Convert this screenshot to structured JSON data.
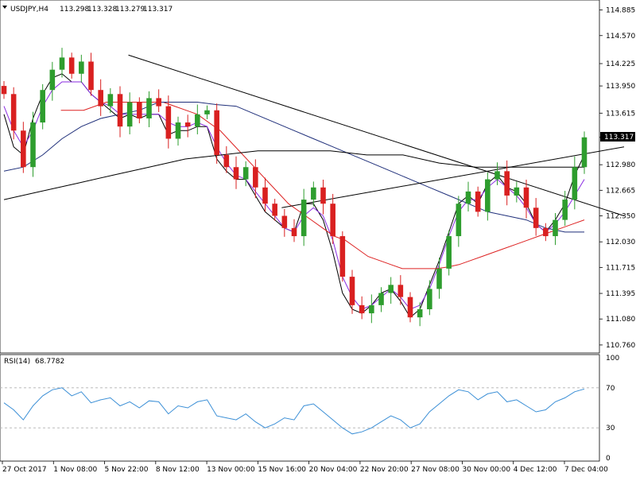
{
  "header": {
    "symbol": "USDJPY,H4",
    "open": "113.298",
    "high": "113.328",
    "low": "113.279",
    "close": "113.317"
  },
  "rsi_header": {
    "label": "RSI(14)",
    "value": "68.7782"
  },
  "price_badge": "113.317",
  "colors": {
    "bull": "#2e9d2e",
    "bear": "#d92020",
    "ma_fast": "#000000",
    "ma_purple": "#8a2be2",
    "ma_red": "#dd2222",
    "ma_navy": "#1f2f7a",
    "ma_black": "#000000",
    "rsi_line": "#3b8fd6",
    "grid": "#b0b0b0"
  },
  "chart_data": [
    {
      "type": "candlestick",
      "title": "",
      "y_axis_ticks": [
        "114.885",
        "114.570",
        "114.225",
        "113.950",
        "113.615",
        "113.317",
        "112.980",
        "112.665",
        "112.350",
        "112.030",
        "111.715",
        "111.395",
        "111.080",
        "110.760"
      ],
      "ylim": [
        110.72,
        114.93
      ],
      "x_axis_ticks": [
        "27 Oct 2017",
        "1 Nov 08:00",
        "5 Nov 22:00",
        "8 Nov 12:00",
        "13 Nov 00:00",
        "15 Nov 16:00",
        "20 Nov 04:00",
        "22 Nov 20:00",
        "27 Nov 08:00",
        "30 Nov 00:00",
        "4 Dec 12:00",
        "7 Dec 04:00"
      ],
      "ohlc_close_path": [
        113.85,
        113.4,
        112.95,
        113.5,
        113.9,
        114.15,
        114.3,
        114.1,
        114.25,
        113.9,
        113.7,
        113.85,
        113.45,
        113.75,
        113.55,
        113.8,
        113.7,
        113.3,
        113.5,
        113.45,
        113.6,
        113.65,
        113.1,
        112.95,
        112.8,
        112.95,
        112.7,
        112.5,
        112.35,
        112.2,
        112.1,
        112.55,
        112.7,
        112.5,
        112.1,
        111.6,
        111.25,
        111.15,
        111.25,
        111.4,
        111.5,
        111.35,
        111.1,
        111.2,
        111.45,
        111.7,
        112.1,
        112.5,
        112.65,
        112.4,
        112.8,
        112.9,
        112.6,
        112.7,
        112.45,
        112.2,
        112.1,
        112.3,
        112.55,
        112.95,
        113.317
      ],
      "moving_averages": [
        {
          "color": "ma_fast",
          "values": [
            113.6,
            113.2,
            113.1,
            113.55,
            113.85,
            114.05,
            114.1,
            114.0,
            114.0,
            113.85,
            113.75,
            113.65,
            113.55,
            113.6,
            113.55,
            113.6,
            113.6,
            113.35,
            113.4,
            113.4,
            113.45,
            113.45,
            113.05,
            112.9,
            112.8,
            112.8,
            112.6,
            112.4,
            112.3,
            112.2,
            112.15,
            112.5,
            112.5,
            112.3,
            111.9,
            111.4,
            111.2,
            111.15,
            111.25,
            111.4,
            111.45,
            111.3,
            111.1,
            111.2,
            111.5,
            111.8,
            112.15,
            112.5,
            112.6,
            112.5,
            112.75,
            112.85,
            112.7,
            112.65,
            112.5,
            112.25,
            112.15,
            112.3,
            112.5,
            112.85,
            113.1
          ]
        },
        {
          "color": "ma_purple",
          "values": [
            113.7,
            113.4,
            113.2,
            113.4,
            113.7,
            113.9,
            114.0,
            114.0,
            114.0,
            113.85,
            113.75,
            113.7,
            113.6,
            113.6,
            113.6,
            113.6,
            113.6,
            113.5,
            113.45,
            113.45,
            113.5,
            113.45,
            113.2,
            113.0,
            112.85,
            112.8,
            112.65,
            112.5,
            112.35,
            112.2,
            112.15,
            112.35,
            112.45,
            112.35,
            112.05,
            111.6,
            111.35,
            111.2,
            111.25,
            111.35,
            111.45,
            111.35,
            111.2,
            111.25,
            111.45,
            111.75,
            112.1,
            112.4,
            112.55,
            112.55,
            112.7,
            112.8,
            112.7,
            112.6,
            112.45,
            112.25,
            112.15,
            112.25,
            112.4,
            112.6,
            112.8
          ]
        },
        {
          "color": "ma_red",
          "values": [
            null,
            null,
            null,
            null,
            null,
            113.65,
            113.65,
            113.65,
            113.7,
            113.75,
            113.75,
            113.75,
            113.75,
            113.75,
            113.75,
            113.7,
            113.65,
            113.6,
            113.5,
            113.4,
            113.25,
            113.1,
            112.95,
            112.8,
            112.65,
            112.5,
            112.4,
            112.3,
            112.2,
            112.1,
            112.05,
            111.95,
            111.85,
            111.8,
            111.75,
            111.7,
            111.7,
            111.7,
            111.7,
            111.72,
            111.75,
            111.8,
            111.85,
            111.9,
            111.95,
            112.0,
            112.05,
            112.1,
            112.15,
            112.2,
            112.25,
            112.3
          ]
        },
        {
          "color": "ma_navy",
          "values": [
            112.9,
            112.95,
            113.1,
            113.3,
            113.45,
            113.55,
            113.6,
            113.65,
            113.75,
            113.75,
            113.75,
            113.72,
            113.7,
            113.6,
            113.5,
            113.4,
            113.3,
            113.2,
            113.1,
            113.0,
            112.9,
            112.8,
            112.7,
            112.6,
            112.5,
            112.4,
            112.35,
            112.3,
            112.2,
            112.15,
            112.15
          ]
        },
        {
          "color": "ma_black",
          "values": [
            112.55,
            112.65,
            112.75,
            112.85,
            112.95,
            113.05,
            113.1,
            113.15,
            113.15,
            113.15,
            113.1,
            113.1,
            113.0,
            112.95,
            112.95,
            112.95,
            112.95
          ]
        }
      ],
      "trendlines": [
        {
          "from": [
            "5 Nov 22:00",
            114.33
          ],
          "to": [
            "7 Dec 04:00",
            112.35
          ]
        },
        {
          "from": [
            "15 Nov 16:00",
            112.45
          ],
          "to": [
            "7 Dec 04:00",
            113.2
          ]
        }
      ]
    },
    {
      "type": "line",
      "title": "",
      "name": "RSI(14)",
      "y_axis_ticks": [
        "100",
        "70",
        "30",
        "0"
      ],
      "ylim": [
        0,
        100
      ],
      "reference_lines": [
        70,
        30
      ],
      "values": [
        55,
        48,
        38,
        52,
        62,
        68,
        70,
        62,
        66,
        55,
        58,
        60,
        52,
        56,
        50,
        57,
        56,
        44,
        52,
        50,
        56,
        58,
        42,
        40,
        38,
        44,
        36,
        30,
        34,
        40,
        38,
        52,
        54,
        46,
        38,
        30,
        24,
        26,
        30,
        36,
        42,
        38,
        30,
        34,
        46,
        54,
        62,
        68,
        66,
        58,
        64,
        66,
        56,
        58,
        52,
        46,
        48,
        56,
        60,
        66,
        68.8
      ]
    }
  ]
}
